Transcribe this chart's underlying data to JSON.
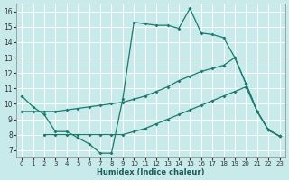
{
  "xlabel": "Humidex (Indice chaleur)",
  "background_color": "#c8eaea",
  "grid_color": "#ffffff",
  "line_color": "#1a7a6e",
  "xlim": [
    -0.5,
    23.5
  ],
  "ylim": [
    6.5,
    16.5
  ],
  "xticks": [
    0,
    1,
    2,
    3,
    4,
    5,
    6,
    7,
    8,
    9,
    10,
    11,
    12,
    13,
    14,
    15,
    16,
    17,
    18,
    19,
    20,
    21,
    22,
    23
  ],
  "yticks": [
    7,
    8,
    9,
    10,
    11,
    12,
    13,
    14,
    15,
    16
  ],
  "line1_x": [
    0,
    1,
    2,
    3,
    4,
    5,
    6,
    7,
    8,
    9,
    10,
    11,
    12,
    13,
    14,
    15,
    16,
    17,
    18,
    19,
    20,
    21,
    22,
    23
  ],
  "line1_y": [
    10.5,
    9.8,
    9.3,
    8.2,
    8.2,
    7.8,
    7.4,
    6.8,
    6.8,
    10.3,
    15.3,
    15.2,
    15.1,
    15.1,
    14.9,
    16.2,
    14.6,
    14.5,
    14.3,
    13.0,
    11.3,
    9.5,
    8.3,
    7.9
  ],
  "line2_x": [
    0,
    1,
    2,
    3,
    4,
    5,
    6,
    7,
    8,
    9,
    10,
    11,
    12,
    13,
    14,
    15,
    16,
    17,
    18,
    19,
    20,
    21,
    22,
    23
  ],
  "line2_y": [
    9.5,
    9.5,
    9.5,
    9.5,
    9.6,
    9.7,
    9.8,
    9.9,
    10.0,
    10.1,
    10.3,
    10.5,
    10.8,
    11.1,
    11.5,
    11.8,
    12.1,
    12.3,
    12.5,
    13.0,
    11.3,
    9.5,
    8.3,
    7.9
  ],
  "line3_x": [
    2,
    3,
    4,
    5,
    6,
    7,
    8,
    9,
    10,
    11,
    12,
    13,
    14,
    15,
    16,
    17,
    18,
    19,
    20,
    21,
    22,
    23
  ],
  "line3_y": [
    8.0,
    8.0,
    8.0,
    8.0,
    8.0,
    8.0,
    8.0,
    8.0,
    8.2,
    8.4,
    8.7,
    9.0,
    9.3,
    9.6,
    9.9,
    10.2,
    10.5,
    10.8,
    11.1,
    9.5,
    8.3,
    7.9
  ]
}
